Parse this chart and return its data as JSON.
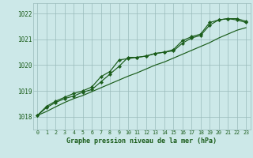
{
  "xlabel": "Graphe pression niveau de la mer (hPa)",
  "bg_color": "#cce8e8",
  "line_color": "#1a5c1a",
  "grid_color": "#99bbbb",
  "xlim": [
    -0.5,
    23.5
  ],
  "ylim": [
    1017.5,
    1022.4
  ],
  "yticks": [
    1018,
    1019,
    1020,
    1021,
    1022
  ],
  "xticks": [
    0,
    1,
    2,
    3,
    4,
    5,
    6,
    7,
    8,
    9,
    10,
    11,
    12,
    13,
    14,
    15,
    16,
    17,
    18,
    19,
    20,
    21,
    22,
    23
  ],
  "series_marked": [
    [
      1018.05,
      1018.35,
      1018.55,
      1018.7,
      1018.8,
      1018.95,
      1019.05,
      1019.35,
      1019.65,
      1019.95,
      1020.3,
      1020.3,
      1020.35,
      1020.45,
      1020.5,
      1020.55,
      1020.85,
      1021.05,
      1021.15,
      1021.55,
      1021.75,
      1021.8,
      1021.8,
      1021.7
    ],
    [
      1018.05,
      1018.4,
      1018.6,
      1018.75,
      1018.9,
      1019.0,
      1019.15,
      1019.55,
      1019.75,
      1020.2,
      1020.25,
      1020.3,
      1020.35,
      1020.45,
      1020.5,
      1020.6,
      1020.95,
      1021.1,
      1021.2,
      1021.65,
      1021.75,
      1021.8,
      1021.75,
      1021.65
    ]
  ],
  "series_smooth": [
    [
      1018.05,
      1018.2,
      1018.38,
      1018.55,
      1018.7,
      1018.82,
      1018.97,
      1019.12,
      1019.27,
      1019.42,
      1019.57,
      1019.7,
      1019.85,
      1020.0,
      1020.12,
      1020.27,
      1020.42,
      1020.57,
      1020.72,
      1020.87,
      1021.05,
      1021.2,
      1021.35,
      1021.45
    ]
  ]
}
